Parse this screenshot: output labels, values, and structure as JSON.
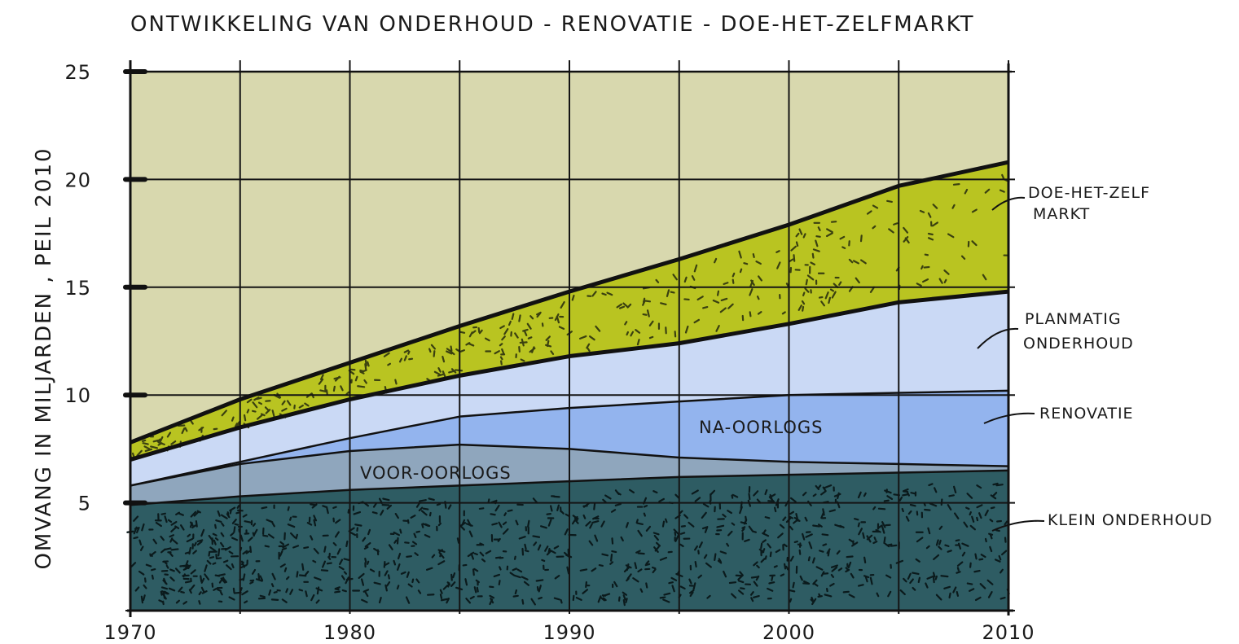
{
  "chart_data": {
    "type": "area",
    "title": "ONTWIKKELING VAN ONDERHOUD - RENOVATIE - DOE-HET-ZELFMARKT",
    "xlabel": "",
    "ylabel": "OMVANG IN MILJARDEN , PEIL 2010",
    "xlim": [
      1970,
      2010
    ],
    "ylim": [
      0,
      25
    ],
    "grid": true,
    "x_ticks": [
      "1970",
      "1980",
      "1990",
      "2000",
      "2010"
    ],
    "y_ticks": [
      "5",
      "10",
      "15",
      "20",
      "25"
    ],
    "x": [
      1970,
      1975,
      1980,
      1985,
      1990,
      1995,
      2000,
      2005,
      2010
    ],
    "stacked": true,
    "series": [
      {
        "name": "KLEIN ONDERHOUD",
        "values": [
          4.9,
          5.3,
          5.6,
          5.8,
          6.0,
          6.2,
          6.3,
          6.4,
          6.5
        ],
        "color": "#2e5c63"
      },
      {
        "name": "VOOR-OORLOGS",
        "values": [
          0.9,
          1.5,
          1.8,
          1.9,
          1.5,
          0.9,
          0.6,
          0.4,
          0.2
        ],
        "color": "#8fa6bd"
      },
      {
        "name": "NA-OORLOGS",
        "values": [
          0.0,
          0.1,
          0.6,
          1.3,
          1.9,
          2.6,
          3.1,
          3.3,
          3.5
        ],
        "color": "#93b4ee"
      },
      {
        "name": "PLANMATIG ONDERHOUD",
        "values": [
          1.2,
          1.6,
          1.8,
          1.9,
          2.4,
          2.7,
          3.3,
          4.2,
          4.6
        ],
        "color": "#cad9f5"
      },
      {
        "name": "DOE-HET-ZELF MARKT",
        "values": [
          0.8,
          1.3,
          1.7,
          2.3,
          3.0,
          3.9,
          4.6,
          5.4,
          6.0
        ],
        "color": "#b9c421"
      }
    ],
    "labels": {
      "series_right": [
        "DOE-HET-ZELF MARKT",
        "PLANMATIG ONDERHOUD",
        "RENOVATIE",
        "KLEIN ONDERHOUD"
      ],
      "inline": [
        "VOOR-OORLOGS",
        "NA-OORLOGS"
      ]
    },
    "background_color": "#d8d8ae",
    "legend": "right"
  }
}
